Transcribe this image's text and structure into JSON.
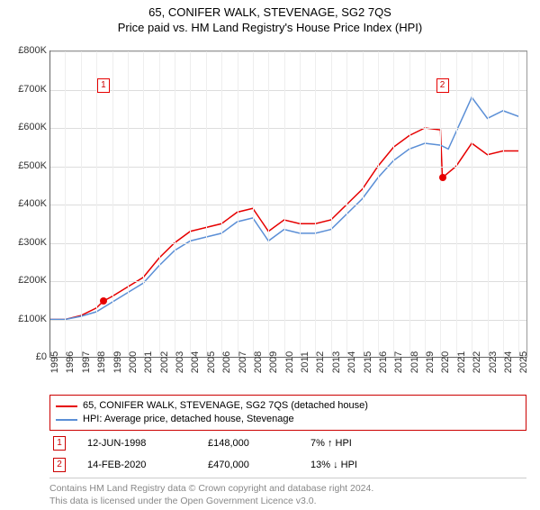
{
  "title": "65, CONIFER WALK, STEVENAGE, SG2 7QS",
  "subtitle": "Price paid vs. HM Land Registry's House Price Index (HPI)",
  "chart": {
    "type": "line",
    "background_color": "#ffffff",
    "grid_color": "#dddddd",
    "xlim": [
      1995,
      2025.5
    ],
    "ylim": [
      0,
      800000
    ],
    "ytick_step": 100000,
    "yticks_labels": [
      "£0",
      "£100K",
      "£200K",
      "£300K",
      "£400K",
      "£500K",
      "£600K",
      "£700K",
      "£800K"
    ],
    "xticks": [
      1995,
      1996,
      1997,
      1998,
      1999,
      2000,
      2001,
      2002,
      2003,
      2004,
      2005,
      2006,
      2007,
      2008,
      2009,
      2010,
      2011,
      2012,
      2013,
      2014,
      2015,
      2016,
      2017,
      2018,
      2019,
      2020,
      2021,
      2022,
      2023,
      2024,
      2025
    ],
    "series": [
      {
        "name": "property",
        "label": "65, CONIFER WALK, STEVENAGE, SG2 7QS (detached house)",
        "color": "#e60000",
        "line_width": 1.5,
        "data": [
          [
            1995,
            100000
          ],
          [
            1996,
            100000
          ],
          [
            1997,
            110000
          ],
          [
            1998,
            130000
          ],
          [
            1998.45,
            148000
          ],
          [
            1999,
            160000
          ],
          [
            2000,
            185000
          ],
          [
            2001,
            210000
          ],
          [
            2002,
            260000
          ],
          [
            2003,
            300000
          ],
          [
            2004,
            330000
          ],
          [
            2005,
            340000
          ],
          [
            2006,
            350000
          ],
          [
            2007,
            380000
          ],
          [
            2008,
            390000
          ],
          [
            2008.5,
            360000
          ],
          [
            2009,
            330000
          ],
          [
            2010,
            360000
          ],
          [
            2011,
            350000
          ],
          [
            2012,
            350000
          ],
          [
            2013,
            360000
          ],
          [
            2014,
            400000
          ],
          [
            2015,
            440000
          ],
          [
            2016,
            500000
          ],
          [
            2017,
            550000
          ],
          [
            2018,
            580000
          ],
          [
            2019,
            600000
          ],
          [
            2020,
            595000
          ],
          [
            2020.12,
            470000
          ],
          [
            2021,
            500000
          ],
          [
            2022,
            560000
          ],
          [
            2023,
            530000
          ],
          [
            2024,
            540000
          ],
          [
            2025,
            540000
          ]
        ]
      },
      {
        "name": "hpi",
        "label": "HPI: Average price, detached house, Stevenage",
        "color": "#5b8fd6",
        "line_width": 1.5,
        "data": [
          [
            1995,
            100000
          ],
          [
            1996,
            100000
          ],
          [
            1997,
            108000
          ],
          [
            1998,
            120000
          ],
          [
            1999,
            145000
          ],
          [
            2000,
            170000
          ],
          [
            2001,
            195000
          ],
          [
            2002,
            240000
          ],
          [
            2003,
            280000
          ],
          [
            2004,
            305000
          ],
          [
            2005,
            315000
          ],
          [
            2006,
            325000
          ],
          [
            2007,
            355000
          ],
          [
            2008,
            365000
          ],
          [
            2008.5,
            335000
          ],
          [
            2009,
            305000
          ],
          [
            2010,
            335000
          ],
          [
            2011,
            325000
          ],
          [
            2012,
            325000
          ],
          [
            2013,
            335000
          ],
          [
            2014,
            375000
          ],
          [
            2015,
            415000
          ],
          [
            2016,
            470000
          ],
          [
            2017,
            515000
          ],
          [
            2018,
            545000
          ],
          [
            2019,
            560000
          ],
          [
            2020,
            555000
          ],
          [
            2020.5,
            545000
          ],
          [
            2021,
            590000
          ],
          [
            2022,
            680000
          ],
          [
            2023,
            625000
          ],
          [
            2024,
            645000
          ],
          [
            2025,
            630000
          ]
        ]
      }
    ],
    "markers": [
      {
        "n": "1",
        "x": 1998.45,
        "y": 148000,
        "label_y": 730000,
        "color": "#e60000"
      },
      {
        "n": "2",
        "x": 2020.12,
        "y": 470000,
        "label_y": 730000,
        "color": "#e60000"
      }
    ]
  },
  "legend": {
    "border_color": "#cc0000",
    "items": [
      {
        "color": "#e60000",
        "label": "65, CONIFER WALK, STEVENAGE, SG2 7QS (detached house)"
      },
      {
        "color": "#5b8fd6",
        "label": "HPI: Average price, detached house, Stevenage"
      }
    ]
  },
  "sales": [
    {
      "n": "1",
      "date": "12-JUN-1998",
      "price": "£148,000",
      "diff": "7% ↑ HPI"
    },
    {
      "n": "2",
      "date": "14-FEB-2020",
      "price": "£470,000",
      "diff": "13% ↓ HPI"
    }
  ],
  "attribution": {
    "line1": "Contains HM Land Registry data © Crown copyright and database right 2024.",
    "line2": "This data is licensed under the Open Government Licence v3.0."
  }
}
